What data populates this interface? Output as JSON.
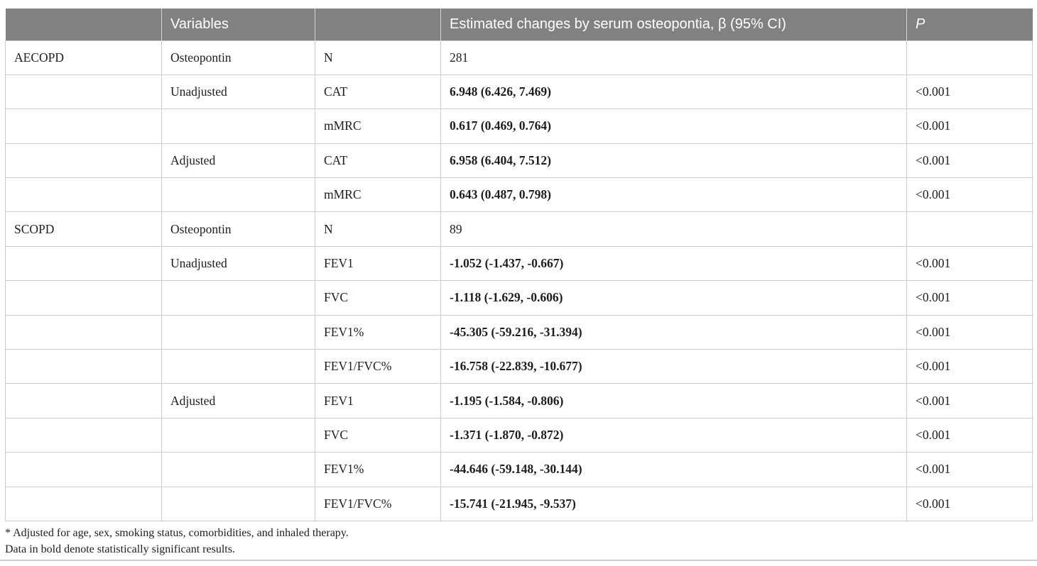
{
  "table": {
    "header": {
      "col_group": "",
      "col_variables": "Variables",
      "col_spacer": "",
      "col_estimates": "Estimated changes by serum osteopontia, β (95% CI)",
      "col_p": "P"
    },
    "style": {
      "header_bg": "#7f8280",
      "header_text": "#ffffff",
      "border": "#cccccc"
    },
    "rows": [
      {
        "group": "AECOPD",
        "model": "Osteopontin",
        "variable": "N",
        "estimate": "281",
        "bold": false,
        "p": ""
      },
      {
        "group": "",
        "model": "Unadjusted",
        "variable": "CAT",
        "estimate": "6.948 (6.426, 7.469)",
        "bold": true,
        "p": "<0.001"
      },
      {
        "group": "",
        "model": "",
        "variable": "mMRC",
        "estimate": "0.617 (0.469, 0.764)",
        "bold": true,
        "p": "<0.001"
      },
      {
        "group": "",
        "model": "Adjusted",
        "variable": "CAT",
        "estimate": "6.958 (6.404, 7.512)",
        "bold": true,
        "p": "<0.001"
      },
      {
        "group": "",
        "model": "",
        "variable": "mMRC",
        "estimate": "0.643 (0.487, 0.798)",
        "bold": true,
        "p": "<0.001"
      },
      {
        "group": "SCOPD",
        "model": "Osteopontin",
        "variable": "N",
        "estimate": "89",
        "bold": false,
        "p": ""
      },
      {
        "group": "",
        "model": "Unadjusted",
        "variable": "FEV1",
        "estimate": "-1.052 (-1.437, -0.667)",
        "bold": true,
        "p": "<0.001"
      },
      {
        "group": "",
        "model": "",
        "variable": "FVC",
        "estimate": "-1.118 (-1.629, -0.606)",
        "bold": true,
        "p": "<0.001"
      },
      {
        "group": "",
        "model": "",
        "variable": "FEV1%",
        "estimate": "-45.305 (-59.216, -31.394)",
        "bold": true,
        "p": "<0.001"
      },
      {
        "group": "",
        "model": "",
        "variable": "FEV1/FVC%",
        "estimate": "-16.758 (-22.839, -10.677)",
        "bold": true,
        "p": "<0.001"
      },
      {
        "group": "",
        "model": "Adjusted",
        "variable": "FEV1",
        "estimate": "-1.195 (-1.584, -0.806)",
        "bold": true,
        "p": "<0.001"
      },
      {
        "group": "",
        "model": "",
        "variable": "FVC",
        "estimate": "-1.371 (-1.870, -0.872)",
        "bold": true,
        "p": "<0.001"
      },
      {
        "group": "",
        "model": "",
        "variable": "FEV1%",
        "estimate": "-44.646 (-59.148, -30.144)",
        "bold": true,
        "p": "<0.001"
      },
      {
        "group": "",
        "model": "",
        "variable": "FEV1/FVC%",
        "estimate": "-15.741 (-21.945, -9.537)",
        "bold": true,
        "p": "<0.001"
      }
    ]
  },
  "footnotes": [
    "* Adjusted for age, sex, smoking status, comorbidities, and inhaled therapy.",
    "Data in bold denote statistically significant results."
  ]
}
